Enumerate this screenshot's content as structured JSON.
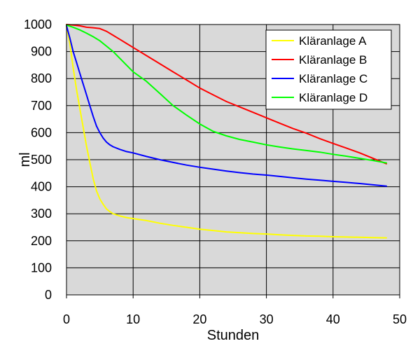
{
  "chart_data": {
    "type": "line",
    "title": "",
    "xlabel": "Stunden",
    "ylabel": "ml",
    "xlim": [
      0,
      50
    ],
    "ylim": [
      0,
      1000
    ],
    "xticks": [
      "0",
      "10",
      "20",
      "30",
      "40",
      "50"
    ],
    "yticks": [
      "0",
      "100",
      "200",
      "300",
      "400",
      "500",
      "600",
      "700",
      "800",
      "900",
      "1000"
    ],
    "grid": true,
    "plot_background": "#d9d9d9",
    "legend_position": "top-right",
    "series": [
      {
        "name": "Kläranlage A",
        "color": "#ffff00",
        "x": [
          0,
          0.5,
          1,
          1.5,
          2,
          2.5,
          3,
          3.5,
          4,
          4.5,
          5,
          5.5,
          6,
          6.5,
          7,
          8,
          9,
          10,
          12,
          14,
          16,
          18,
          20,
          22,
          24,
          26,
          28,
          30,
          32,
          34,
          36,
          38,
          40,
          42,
          44,
          46,
          48
        ],
        "y": [
          990,
          930,
          840,
          760,
          690,
          620,
          550,
          490,
          430,
          385,
          355,
          335,
          318,
          308,
          300,
          292,
          286,
          282,
          275,
          265,
          257,
          250,
          243,
          238,
          233,
          230,
          227,
          225,
          222,
          220,
          218,
          217,
          215,
          214,
          213,
          212,
          211
        ]
      },
      {
        "name": "Kläranlage B",
        "color": "#ff0000",
        "x": [
          0,
          1,
          2,
          3,
          4,
          5,
          6,
          7,
          8,
          9,
          10,
          12,
          14,
          16,
          18,
          20,
          22,
          24,
          26,
          28,
          30,
          32,
          34,
          36,
          38,
          40,
          42,
          44,
          46,
          48
        ],
        "y": [
          1000,
          998,
          995,
          990,
          988,
          985,
          975,
          960,
          945,
          930,
          915,
          885,
          855,
          825,
          795,
          765,
          740,
          715,
          695,
          675,
          655,
          635,
          615,
          598,
          578,
          560,
          543,
          525,
          505,
          485
        ]
      },
      {
        "name": "Kläranlage C",
        "color": "#0000ff",
        "x": [
          0,
          0.5,
          1,
          1.5,
          2,
          2.5,
          3,
          3.5,
          4,
          4.5,
          5,
          5.5,
          6,
          6.5,
          7,
          8,
          9,
          10,
          12,
          14,
          16,
          18,
          20,
          22,
          24,
          26,
          28,
          30,
          32,
          34,
          36,
          38,
          40,
          42,
          44,
          46,
          48
        ],
        "y": [
          995,
          950,
          900,
          860,
          820,
          780,
          740,
          700,
          660,
          625,
          600,
          580,
          565,
          555,
          548,
          538,
          530,
          525,
          512,
          500,
          490,
          480,
          472,
          465,
          458,
          452,
          447,
          443,
          438,
          433,
          428,
          424,
          420,
          416,
          412,
          407,
          402
        ]
      },
      {
        "name": "Kläranlage D",
        "color": "#00ff00",
        "x": [
          0,
          1,
          2,
          3,
          4,
          5,
          6,
          7,
          8,
          9,
          10,
          12,
          14,
          16,
          18,
          20,
          22,
          24,
          26,
          28,
          30,
          32,
          34,
          36,
          38,
          40,
          42,
          44,
          46,
          48
        ],
        "y": [
          998,
          990,
          980,
          968,
          955,
          940,
          920,
          900,
          875,
          850,
          825,
          790,
          745,
          700,
          665,
          632,
          605,
          588,
          575,
          565,
          555,
          547,
          540,
          534,
          528,
          520,
          513,
          505,
          497,
          488
        ]
      }
    ]
  }
}
